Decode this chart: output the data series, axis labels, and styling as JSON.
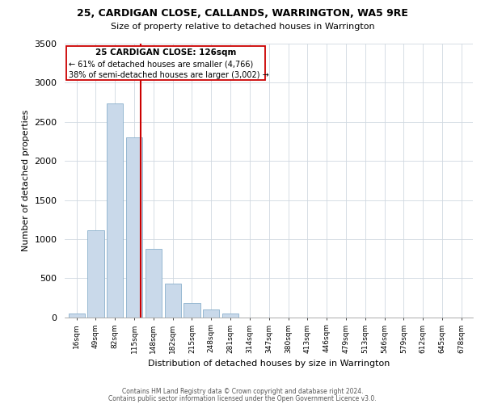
{
  "title": "25, CARDIGAN CLOSE, CALLANDS, WARRINGTON, WA5 9RE",
  "subtitle": "Size of property relative to detached houses in Warrington",
  "xlabel": "Distribution of detached houses by size in Warrington",
  "ylabel": "Number of detached properties",
  "bar_color": "#c9d9ea",
  "bar_edge_color": "#8ab0cc",
  "vline_color": "#cc0000",
  "vline_x": 3.35,
  "annotation_title": "25 CARDIGAN CLOSE: 126sqm",
  "annotation_line1": "← 61% of detached houses are smaller (4,766)",
  "annotation_line2": "38% of semi-detached houses are larger (3,002) →",
  "categories": [
    "16sqm",
    "49sqm",
    "82sqm",
    "115sqm",
    "148sqm",
    "182sqm",
    "215sqm",
    "248sqm",
    "281sqm",
    "314sqm",
    "347sqm",
    "380sqm",
    "413sqm",
    "446sqm",
    "479sqm",
    "513sqm",
    "546sqm",
    "579sqm",
    "612sqm",
    "645sqm",
    "678sqm"
  ],
  "values": [
    50,
    1110,
    2740,
    2300,
    880,
    430,
    185,
    100,
    45,
    0,
    0,
    0,
    0,
    0,
    0,
    0,
    0,
    0,
    0,
    0,
    0
  ],
  "ylim": [
    0,
    3500
  ],
  "yticks": [
    0,
    500,
    1000,
    1500,
    2000,
    2500,
    3000,
    3500
  ],
  "footer1": "Contains HM Land Registry data © Crown copyright and database right 2024.",
  "footer2": "Contains public sector information licensed under the Open Government Licence v3.0."
}
